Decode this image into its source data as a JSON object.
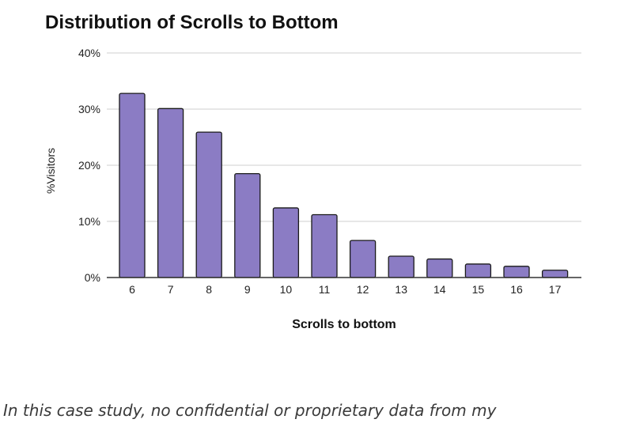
{
  "chart_data": {
    "type": "bar",
    "title": "Distribution of Scrolls to Bottom",
    "xlabel": "Scrolls to bottom",
    "ylabel": "%Visitors",
    "categories": [
      "6",
      "7",
      "8",
      "9",
      "10",
      "11",
      "12",
      "13",
      "14",
      "15",
      "16",
      "17"
    ],
    "values": [
      32.8,
      30.1,
      25.9,
      18.5,
      12.4,
      11.2,
      6.6,
      3.8,
      3.3,
      2.4,
      2.0,
      1.3
    ],
    "ylim": [
      0,
      40
    ],
    "yticks": [
      0,
      10,
      20,
      30,
      40
    ],
    "ytick_labels": [
      "0%",
      "10%",
      "20%",
      "30%",
      "40%"
    ],
    "grid": true,
    "colors": {
      "bar_fill": "#8b7cc4",
      "bar_stroke": "#1a1a1a",
      "grid": "#cfcfcf",
      "axis": "#333333"
    }
  },
  "caption": "In this case study, no confidential or proprietary data from my"
}
